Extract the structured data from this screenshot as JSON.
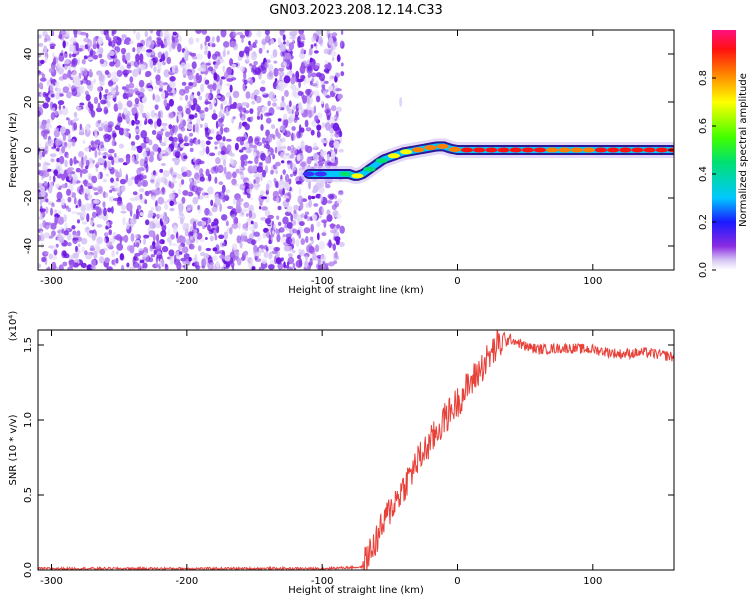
{
  "title": "GN03.2023.208.12.14.C33",
  "colorbar": {
    "label": "Normalized spectral amplitude",
    "ticks": [
      "0.0",
      "0.2",
      "0.4",
      "0.6",
      "0.8"
    ],
    "range": [
      0,
      1
    ]
  },
  "chart_data": [
    {
      "type": "heatmap",
      "title": "",
      "xlabel": "Height of straight line (km)",
      "ylabel": "Frequency (Hz)",
      "xlim": [
        -310,
        160
      ],
      "ylim": [
        -50,
        50
      ],
      "xticks": [
        "-300",
        "-200",
        "-100",
        "0",
        "100"
      ],
      "yticks": [
        "40",
        "20",
        "0",
        "-20",
        "-40"
      ],
      "noise_region_x": [
        -310,
        -85
      ],
      "ridge": {
        "x": [
          -110,
          -100,
          -90,
          -80,
          -75,
          -70,
          -65,
          -60,
          -55,
          -50,
          -45,
          -40,
          -35,
          -30,
          -25,
          -20,
          -15,
          -10,
          -5,
          0,
          5,
          10,
          20,
          40,
          60,
          80,
          90,
          100,
          120,
          140,
          160
        ],
        "frequency": [
          -10,
          -10,
          -10,
          -10,
          -11,
          -10,
          -8,
          -6,
          -4,
          -3,
          -2,
          -1,
          -0.5,
          0,
          0.5,
          1,
          1.5,
          1.5,
          0.5,
          0,
          0,
          0,
          0,
          0,
          0,
          0,
          0,
          0,
          0,
          0,
          0
        ],
        "amplitude": [
          0.2,
          0.3,
          0.45,
          0.6,
          0.7,
          0.6,
          0.55,
          0.5,
          0.55,
          0.6,
          0.6,
          0.65,
          0.7,
          0.75,
          0.8,
          0.85,
          0.9,
          0.85,
          0.8,
          0.85,
          0.9,
          0.95,
          0.95,
          0.95,
          0.9,
          0.85,
          0.8,
          0.9,
          0.95,
          1.0,
          1.0
        ]
      }
    },
    {
      "type": "line",
      "title": "",
      "xlabel": "Height of straight line (km)",
      "ylabel": "SNR (10 * v/v)",
      "y_multiplier": "(x10⁴)",
      "xlim": [
        -310,
        160
      ],
      "ylim": [
        0,
        1.6
      ],
      "xticks": [
        "-300",
        "-200",
        "-100",
        "0",
        "100"
      ],
      "yticks": [
        "0.0",
        "0.5",
        "1.0",
        "1.5"
      ],
      "color": "#e8413a",
      "series": [
        {
          "x": [
            -310,
            -200,
            -100,
            -70,
            -60,
            -50,
            -40,
            -30,
            -20,
            -10,
            0,
            10,
            20,
            30,
            40,
            50,
            60,
            80,
            100,
            120,
            140,
            160
          ],
          "values": [
            0.01,
            0.01,
            0.01,
            0.02,
            0.2,
            0.4,
            0.55,
            0.72,
            0.85,
            1.0,
            1.12,
            1.25,
            1.38,
            1.5,
            1.54,
            1.49,
            1.47,
            1.48,
            1.47,
            1.44,
            1.45,
            1.42
          ]
        }
      ]
    }
  ]
}
